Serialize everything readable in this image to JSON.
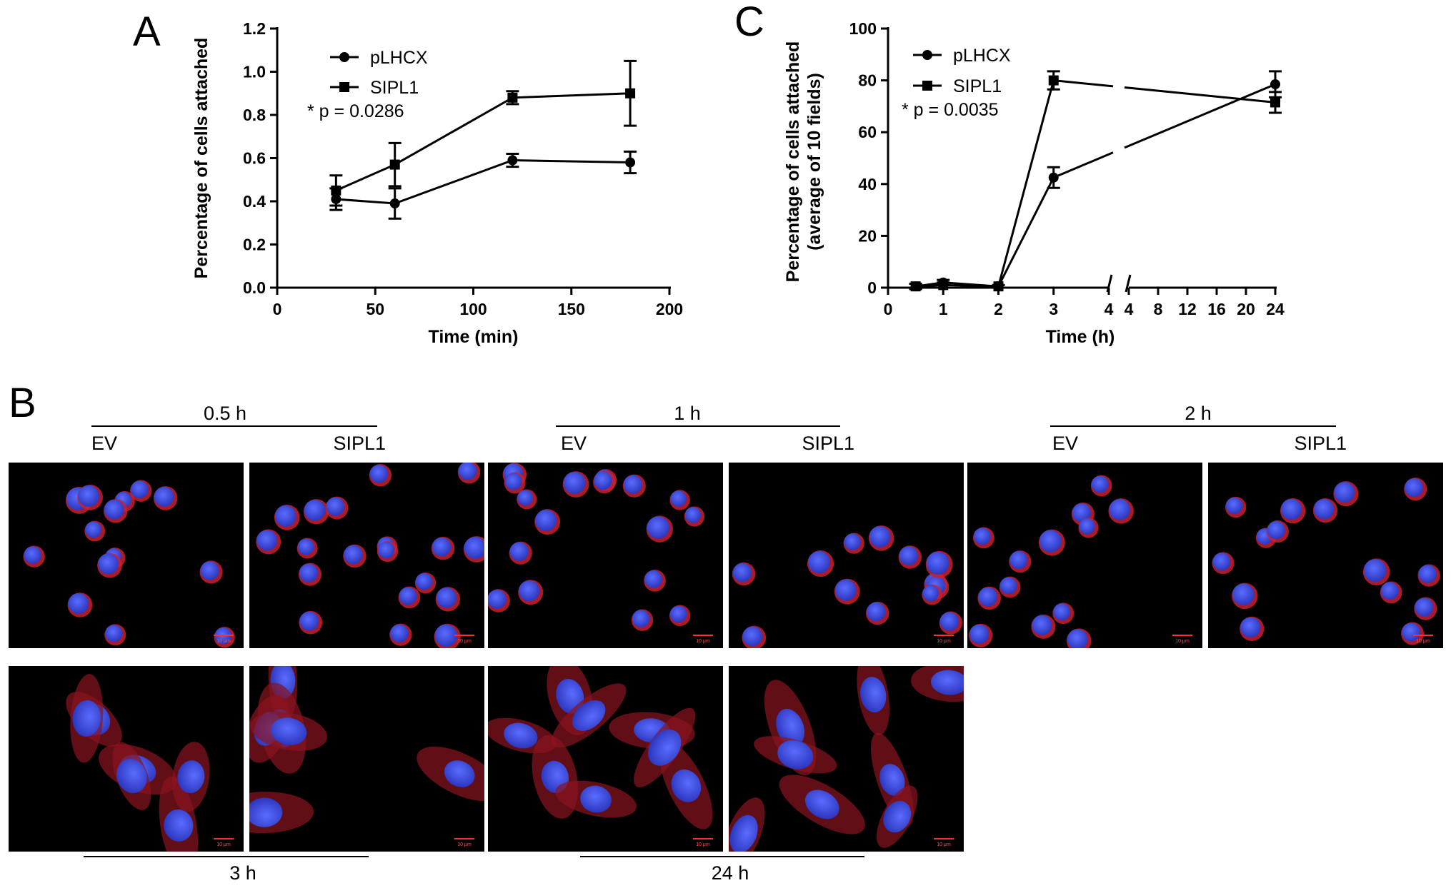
{
  "panel_a": {
    "letter": "A"
  },
  "panel_b": {
    "letter": "B",
    "top_groups": [
      {
        "time": "0.5 h",
        "left": "EV",
        "right": "SIPL1"
      },
      {
        "time": "1 h",
        "left": "EV",
        "right": "SIPL1"
      },
      {
        "time": "2 h",
        "left": "EV",
        "right": "SIPL1"
      }
    ],
    "bottom_groups": [
      {
        "time": "3 h"
      },
      {
        "time": "24 h"
      }
    ],
    "scale_bar": "10 μm"
  },
  "panel_c": {
    "letter": "C"
  },
  "chart_data": [
    {
      "type": "line",
      "panel": "A",
      "title": "",
      "xlabel": "Time (min)",
      "ylabel": "Percentage of cells attached",
      "xlim": [
        0,
        200
      ],
      "ylim": [
        0,
        1.2
      ],
      "xticks": [
        0,
        50,
        100,
        150,
        200
      ],
      "yticks": [
        "0.0",
        "0.2",
        "0.4",
        "0.6",
        "0.8",
        "1.0",
        "1.2"
      ],
      "legend": {
        "placement": "top-left"
      },
      "annotation": "* p = 0.0286",
      "series": [
        {
          "name": "pLHCX",
          "marker": "circle",
          "x": [
            30,
            60,
            120,
            180
          ],
          "y": [
            0.41,
            0.39,
            0.59,
            0.58
          ],
          "err": [
            0.05,
            0.07,
            0.03,
            0.05
          ]
        },
        {
          "name": "SIPL1",
          "marker": "square",
          "x": [
            30,
            60,
            120,
            180
          ],
          "y": [
            0.45,
            0.57,
            0.88,
            0.9
          ],
          "err": [
            0.07,
            0.1,
            0.03,
            0.15
          ]
        }
      ]
    },
    {
      "type": "line",
      "panel": "C",
      "title": "",
      "xlabel": "Time (h)",
      "ylabel": "Percentage of cells attached\n(average of 10 fields)",
      "ylim": [
        0,
        100
      ],
      "yticks": [
        "0",
        "20",
        "40",
        "60",
        "80",
        "100"
      ],
      "axis_break": true,
      "xticks_left": [
        "0",
        "1",
        "2",
        "3",
        "4"
      ],
      "xticks_right": [
        "4",
        "8",
        "12",
        "16",
        "20",
        "24"
      ],
      "legend": {
        "placement": "top-left"
      },
      "annotation": "* p = 0.0035",
      "series": [
        {
          "name": "pLHCX",
          "marker": "circle",
          "x": [
            0.5,
            1,
            2,
            3,
            24
          ],
          "y": [
            0.5,
            2,
            0.5,
            42.5,
            78.5
          ],
          "err": [
            1,
            1,
            0.5,
            4,
            5
          ]
        },
        {
          "name": "SIPL1",
          "marker": "square",
          "x": [
            0.5,
            1,
            2,
            3,
            24
          ],
          "y": [
            0.5,
            1,
            0.5,
            80,
            71.5
          ],
          "err": [
            1,
            1,
            0.5,
            3.5,
            4
          ]
        }
      ]
    }
  ]
}
